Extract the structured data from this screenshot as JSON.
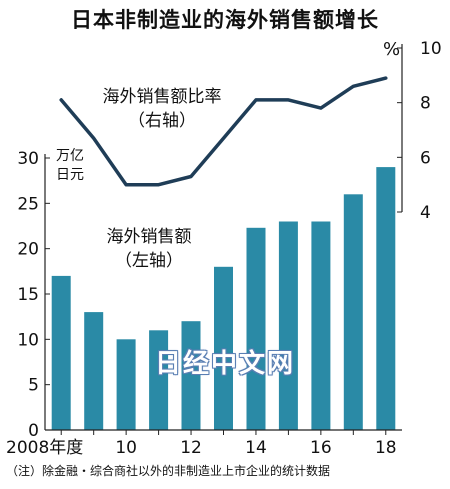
{
  "title": "日本非制造业的海外销售额增长",
  "footnote": "（注）除金融・综合商社以外的非制造业上市企业的统计数据",
  "watermark": "日经中文网",
  "colors": {
    "bar": "#2a8aa6",
    "line": "#1f3d57",
    "axis": "#222222"
  },
  "chart_data": {
    "type": "bar",
    "title": "日本非制造业的海外销售额增长",
    "x": [
      2008,
      2009,
      2010,
      2011,
      2012,
      2013,
      2014,
      2015,
      2016,
      2017,
      2018
    ],
    "x_tick_labels": [
      "2008年度",
      "10",
      "12",
      "14",
      "16",
      "18"
    ],
    "series": [
      {
        "name": "海外销售额",
        "name_line2": "（左轴）",
        "type": "bar",
        "axis": "left",
        "values": [
          17,
          13,
          10,
          11,
          12,
          18,
          22.3,
          23,
          23,
          26,
          29
        ]
      },
      {
        "name": "海外销售额比率",
        "name_line2": "（右轴）",
        "type": "line",
        "axis": "right",
        "values": [
          8.1,
          6.7,
          5.0,
          5.0,
          5.3,
          6.7,
          8.1,
          8.1,
          7.8,
          8.6,
          8.9
        ]
      }
    ],
    "left_axis": {
      "unit_line1": "万亿",
      "unit_line2": "日元",
      "ylim": [
        0,
        30
      ],
      "ticks": [
        0,
        5,
        10,
        15,
        20,
        25,
        30
      ]
    },
    "right_axis": {
      "unit": "%",
      "ylim": [
        4,
        10
      ],
      "ticks": [
        4,
        6,
        8,
        10
      ]
    },
    "grid": false
  }
}
